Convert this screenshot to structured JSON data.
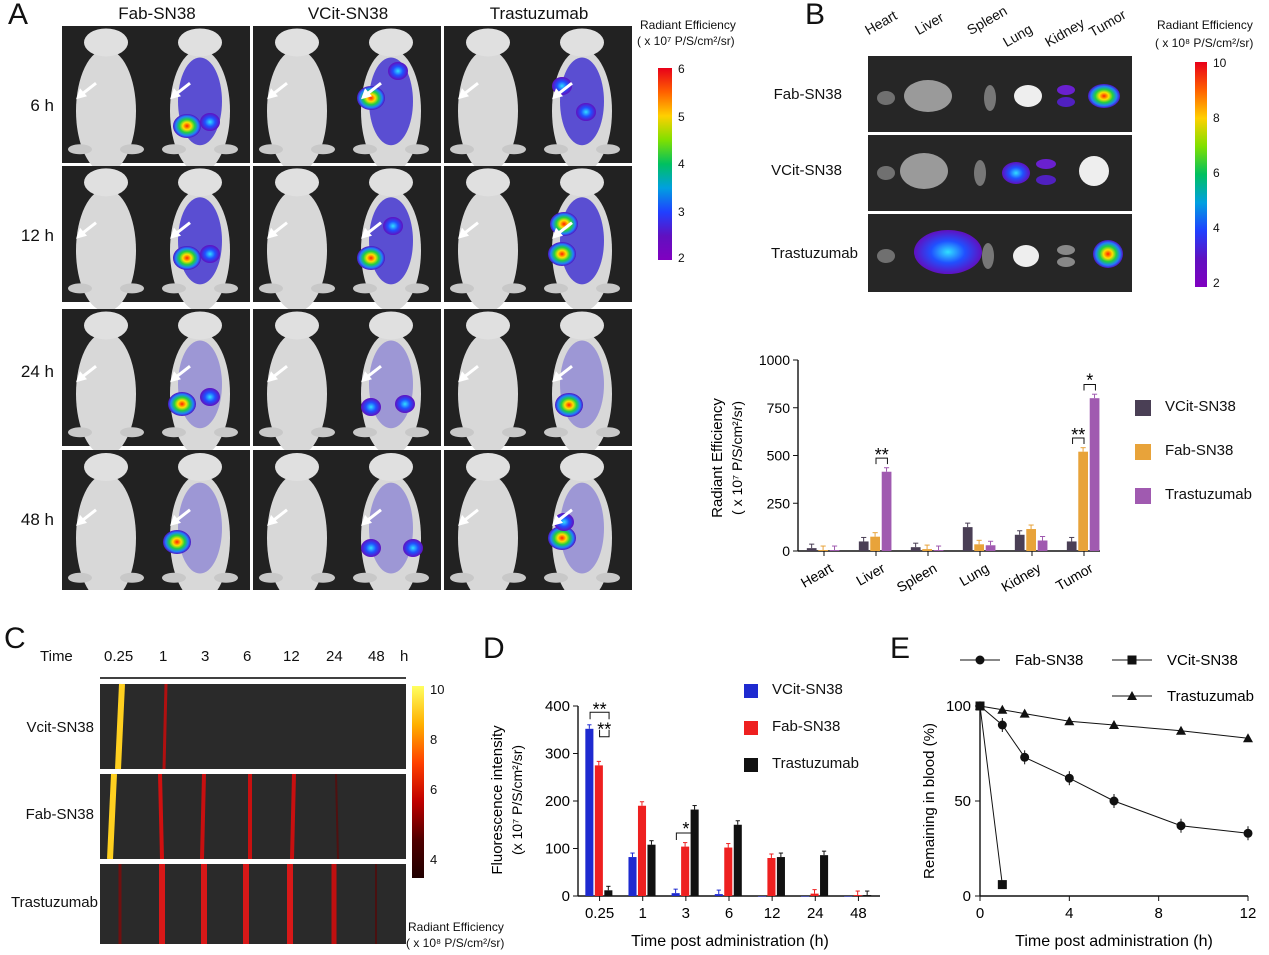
{
  "panels": {
    "A": "A",
    "B": "B",
    "C": "C",
    "D": "D",
    "E": "E"
  },
  "panelA": {
    "columns": [
      "Fab-SN38",
      "VCit-SN38",
      "Trastuzumab"
    ],
    "rows": [
      "6 h",
      "12 h",
      "24 h",
      "48 h"
    ],
    "scale_title": "Radiant Efficiency",
    "scale_unit": "( x 10⁷ P/S/cm²/sr)",
    "scale_ticks": [
      "6",
      "5",
      "4",
      "3",
      "2"
    ]
  },
  "panelB": {
    "organs": [
      "Heart",
      "Liver",
      "Spleen",
      "Lung",
      "Kidney",
      "Tumor"
    ],
    "rows": [
      "Fab-SN38",
      "VCit-SN38",
      "Trastuzumab"
    ],
    "scale_title": "Radiant Efficiency",
    "scale_unit": "( x 10⁸ P/S/cm²/sr)",
    "scale_ticks": [
      "10",
      "8",
      "6",
      "4",
      "2"
    ]
  },
  "panelC": {
    "time_label": "Time",
    "times": [
      "0.25",
      "1",
      "3",
      "6",
      "12",
      "24",
      "48"
    ],
    "time_unit": "h",
    "rows": [
      "Vcit-SN38",
      "Fab-SN38",
      "Trastuzumab"
    ],
    "scale_ticks": [
      "10",
      "8",
      "6",
      "4"
    ],
    "scale_title": "Radiant Efficiency",
    "scale_unit": "( x 10⁸ P/S/cm²/sr)"
  },
  "chart_data": [
    {
      "id": "B-bar",
      "type": "bar",
      "categories": [
        "Heart",
        "Liver",
        "Spleen",
        "Lung",
        "Kidney",
        "Tumor"
      ],
      "series": [
        {
          "name": "VCit-SN38",
          "color": "#4a3f55",
          "values": [
            15,
            50,
            20,
            125,
            85,
            50
          ]
        },
        {
          "name": "Fab-SN38",
          "color": "#e8a33a",
          "values": [
            5,
            75,
            10,
            35,
            115,
            520
          ]
        },
        {
          "name": "Trastuzumab",
          "color": "#a05ab0",
          "values": [
            5,
            415,
            5,
            30,
            55,
            800
          ]
        }
      ],
      "ylabel": "Radiant Efficiency",
      "ylabel2": "( x 10⁷ P/S/cm²/sr)",
      "ylim": [
        0,
        1000
      ],
      "yticks": [
        0,
        250,
        500,
        750,
        1000
      ],
      "annotations": [
        "**",
        "**",
        "*"
      ]
    },
    {
      "id": "D-bar",
      "type": "bar",
      "categories": [
        "0.25",
        "1",
        "3",
        "6",
        "12",
        "24",
        "48"
      ],
      "series": [
        {
          "name": "VCit-SN38",
          "color": "#1e2ad0",
          "values": [
            352,
            82,
            6,
            4,
            0,
            0,
            0
          ]
        },
        {
          "name": "Fab-SN38",
          "color": "#ee2020",
          "values": [
            275,
            190,
            104,
            102,
            80,
            5,
            2
          ]
        },
        {
          "name": "Trastuzumab",
          "color": "#111111",
          "values": [
            12,
            108,
            182,
            150,
            82,
            86,
            2
          ]
        }
      ],
      "xlabel": "Time post administration (h)",
      "ylabel": "Fluorescence intensity",
      "ylabel2": "(x 10⁷ P/S/cm²/sr)",
      "ylim": [
        0,
        400
      ],
      "yticks": [
        0,
        100,
        200,
        300,
        400
      ],
      "annotations": [
        "**",
        "**",
        "*"
      ]
    },
    {
      "id": "E-line",
      "type": "line",
      "series": [
        {
          "name": "Fab-SN38",
          "marker": "circle",
          "x": [
            0,
            1,
            2,
            4,
            6,
            9,
            12
          ],
          "y": [
            100,
            90,
            73,
            62,
            50,
            37,
            33
          ]
        },
        {
          "name": "VCit-SN38",
          "marker": "square",
          "x": [
            0,
            1
          ],
          "y": [
            100,
            6
          ]
        },
        {
          "name": "Trastuzumab",
          "marker": "triangle",
          "x": [
            0,
            1,
            2,
            4,
            6,
            9,
            12
          ],
          "y": [
            100,
            98,
            96,
            92,
            90,
            87,
            83
          ]
        }
      ],
      "xlabel": "Time post administration (h)",
      "ylabel": "Remaining  in blood (%)",
      "xlim": [
        0,
        12
      ],
      "ylim": [
        0,
        100
      ],
      "xticks": [
        0,
        4,
        8,
        12
      ],
      "yticks": [
        0,
        50,
        100
      ]
    }
  ]
}
